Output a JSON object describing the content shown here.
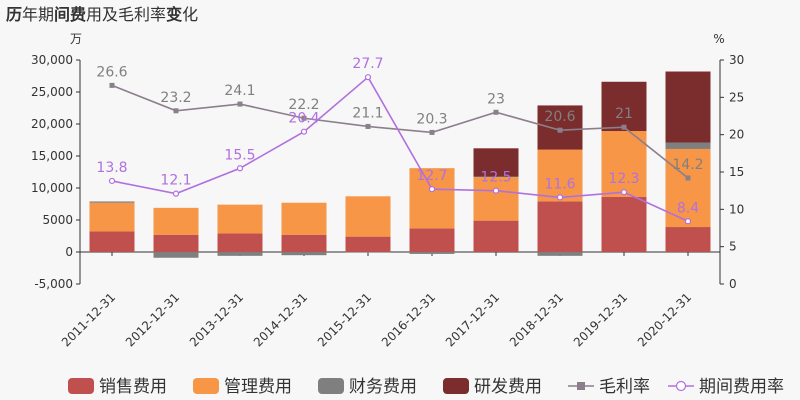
{
  "chart_data": {
    "type": "bar",
    "title_parts": [
      {
        "text": "历",
        "bold": true
      },
      {
        "text": "年期",
        "bold": false
      },
      {
        "text": "间费",
        "bold": true
      },
      {
        "text": "用及毛利率",
        "bold": false
      },
      {
        "text": "变",
        "bold": true
      },
      {
        "text": "化",
        "bold": false
      }
    ],
    "left_unit": "万",
    "right_unit": "%",
    "categories": [
      "2011-12-31",
      "2012-12-31",
      "2013-12-31",
      "2014-12-31",
      "2015-12-31",
      "2016-12-31",
      "2017-12-31",
      "2018-12-31",
      "2019-12-31",
      "2020-12-31"
    ],
    "left_ylim": [
      -5000,
      30000
    ],
    "left_ticks": [
      "-5,000",
      "0",
      "5000",
      "10,000",
      "15,000",
      "20,000",
      "25,000",
      "30,000"
    ],
    "left_tick_values": [
      -5000,
      0,
      5000,
      10000,
      15000,
      20000,
      25000,
      30000
    ],
    "right_ylim": [
      0,
      30
    ],
    "right_ticks": [
      "0",
      "5",
      "10",
      "15",
      "20",
      "25",
      "30"
    ],
    "right_tick_values": [
      0,
      5,
      10,
      15,
      20,
      25,
      30
    ],
    "bar_series": [
      {
        "name": "销售费用",
        "color": "#c0504d",
        "values": [
          3200,
          2700,
          2900,
          2700,
          2400,
          3700,
          4900,
          7900,
          8600,
          3900
        ]
      },
      {
        "name": "管理费用",
        "color": "#f79646",
        "values": [
          4500,
          4200,
          4500,
          5000,
          6300,
          9400,
          6800,
          8100,
          10300,
          12200
        ]
      },
      {
        "name": "财务费用",
        "color": "#7f7f7f",
        "values": [
          200,
          -900,
          -600,
          -500,
          -100,
          -300,
          100,
          -600,
          0,
          1000
        ]
      },
      {
        "name": "研发费用",
        "color": "#7b2c2c",
        "values": [
          0,
          0,
          0,
          0,
          0,
          0,
          4400,
          6900,
          7700,
          11100
        ]
      }
    ],
    "line_series": [
      {
        "name": "毛利率",
        "color": "#8c7f8c",
        "values": [
          26.6,
          23.2,
          24.1,
          22.2,
          21.1,
          20.3,
          23,
          20.6,
          21,
          14.2
        ],
        "labels": [
          "26.6",
          "23.2",
          "24.1",
          "22.2",
          "21.1",
          "20.3",
          "23",
          "20.6",
          "21",
          "14.2"
        ]
      },
      {
        "name": "期间费用率",
        "color": "#b070e0",
        "values": [
          13.8,
          12.1,
          15.5,
          20.4,
          27.7,
          12.7,
          12.5,
          11.6,
          12.3,
          8.4
        ],
        "labels": [
          "13.8",
          "12.1",
          "15.5",
          "20.4",
          "27.7",
          "12.7",
          "12.5",
          "11.6",
          "12.3",
          "8.4"
        ]
      }
    ],
    "legend_position": "bottom"
  }
}
